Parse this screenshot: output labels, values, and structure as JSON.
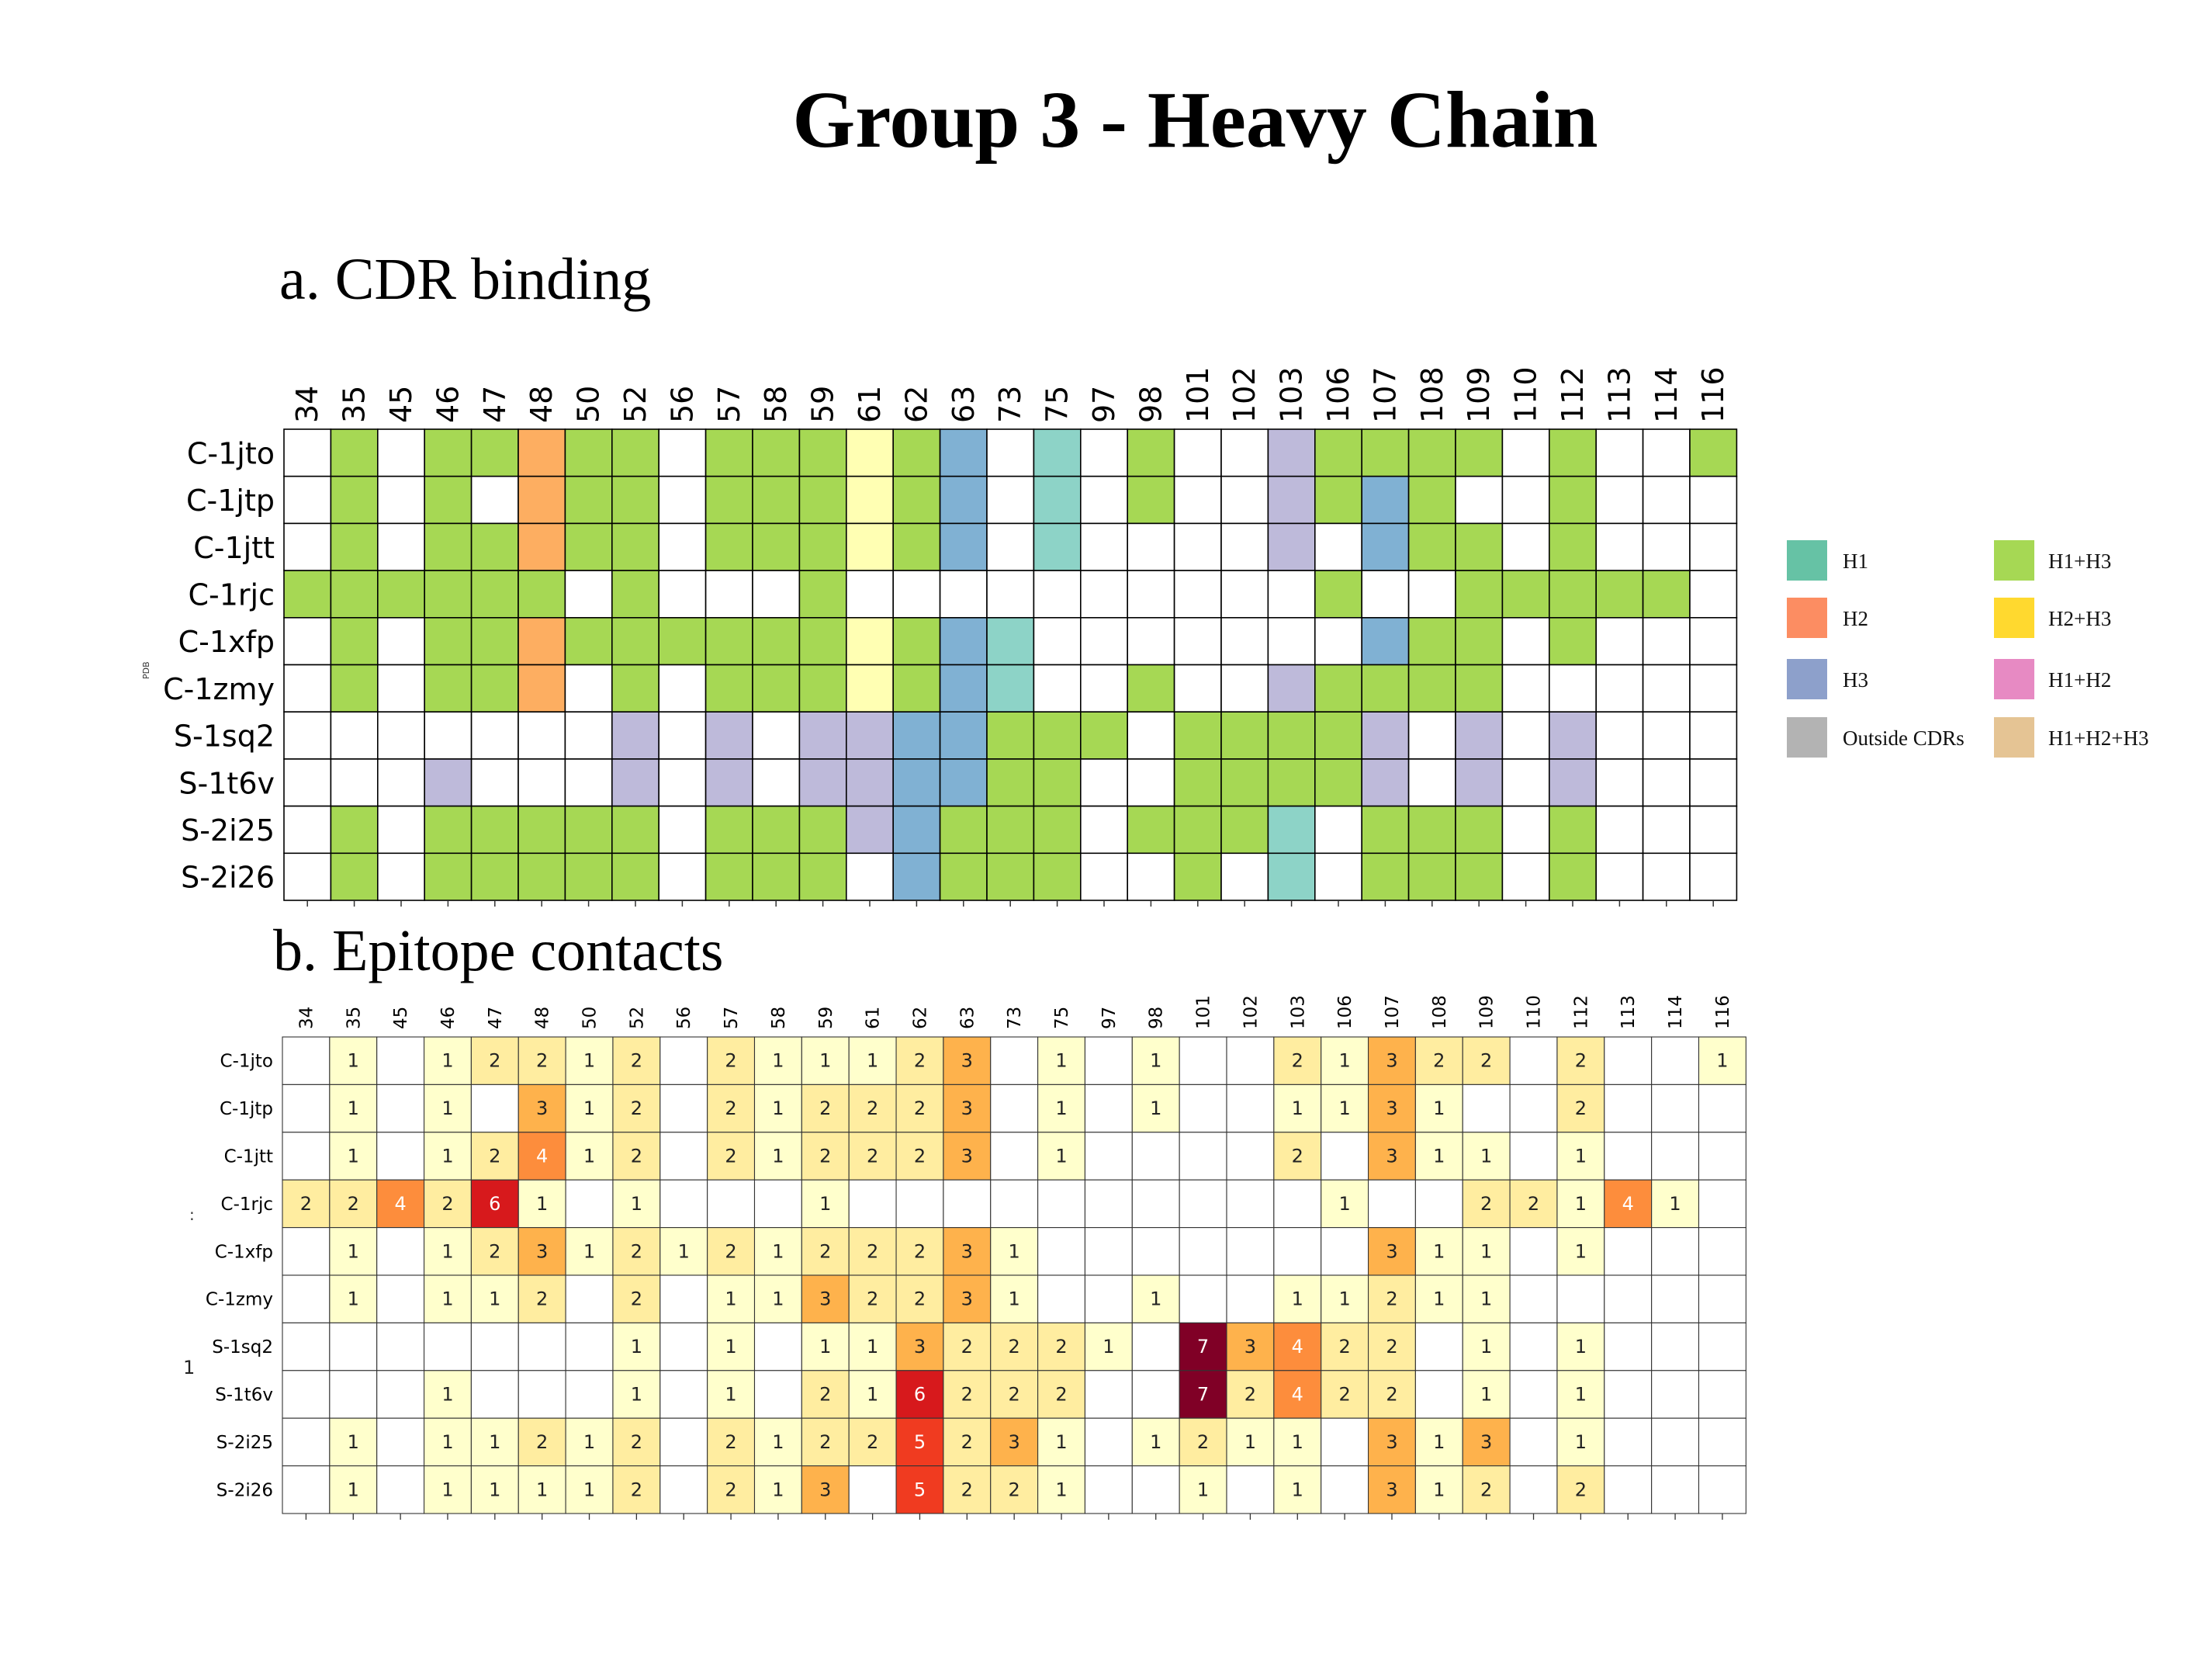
{
  "title": "Group 3 - Heavy Chain",
  "panels": {
    "a_title": "a. CDR binding",
    "b_title": "b. Epitope contacts"
  },
  "side_labels": {
    "a_ylabel": "PDB",
    "b_mark_1": ":",
    "b_mark_2": "1"
  },
  "legend": [
    {
      "key": "H1",
      "label": "H1",
      "color": "#66c2a5"
    },
    {
      "key": "H2",
      "label": "H2",
      "color": "#fc8d62"
    },
    {
      "key": "H3",
      "label": "H3",
      "color": "#8da0cb"
    },
    {
      "key": "O",
      "label": "Outside CDRs",
      "color": "#b3b3b3"
    },
    {
      "key": "H13",
      "label": "H1+H3",
      "color": "#a6d854"
    },
    {
      "key": "H23",
      "label": "H2+H3",
      "color": "#ffd92f"
    },
    {
      "key": "H12",
      "label": "H1+H2",
      "color": "#e78ac3"
    },
    {
      "key": "H123",
      "label": "H1+H2+H3",
      "color": "#e5c494"
    }
  ],
  "chart_data": [
    {
      "type": "heatmap",
      "panel": "a",
      "columns": [
        "34",
        "35",
        "45",
        "46",
        "47",
        "48",
        "50",
        "52",
        "56",
        "57",
        "58",
        "59",
        "61",
        "62",
        "63",
        "73",
        "75",
        "97",
        "98",
        "101",
        "102",
        "103",
        "106",
        "107",
        "108",
        "109",
        "110",
        "112",
        "113",
        "114",
        "116"
      ],
      "rows": [
        "C-1jto",
        "C-1jtp",
        "C-1jtt",
        "C-1rjc",
        "C-1xfp",
        "C-1zmy",
        "S-1sq2",
        "S-1t6v",
        "S-2i25",
        "S-2i26"
      ],
      "cell_colors": {
        "G": "#a6d854",
        "O": "#fdae61",
        "Y": "#ffffb3",
        "B": "#80b1d3",
        "T": "#8dd3c7",
        "L": "#bebada",
        "W": "#ffffff"
      },
      "cells": [
        "WGWGGOGGWGGGYGBWTWGWWLGGGGWGWWG",
        "WGWGWOGGWGGGYGBWTWGWWLGBGWWGWWW",
        "WGWGGOGGWGGGYGBWTWWWWLWBGGWGWWW",
        "GGGGGGWGWWWGWWWWWWWWWWGWWGGGGGW",
        "WGWGGOGGGGGGYGBTWWWWWWWBGGWGWWW",
        "WGWGGOWGWGGGYGBTWWGWWLGGGGWWWWW",
        "WWWWWWWLWLWLLBBGGGWGGGGLWLWLWWW",
        "WWWLWWWLWLWLLBBGGWWGGGGLWLWLWWW",
        "WGWGGGGGWGGGLBGGGWGGGTWGGGWGWWW",
        "WGWGGGGGWGGGWBGGGWWGWTWGGGWGWWW"
      ]
    },
    {
      "type": "heatmap",
      "panel": "b",
      "columns": [
        "34",
        "35",
        "45",
        "46",
        "47",
        "48",
        "50",
        "52",
        "56",
        "57",
        "58",
        "59",
        "61",
        "62",
        "63",
        "73",
        "75",
        "97",
        "98",
        "101",
        "102",
        "103",
        "106",
        "107",
        "108",
        "109",
        "110",
        "112",
        "113",
        "114",
        "116"
      ],
      "rows": [
        "C-1jto",
        "C-1jtp",
        "C-1jtt",
        "C-1rjc",
        "C-1xfp",
        "C-1zmy",
        "S-1sq2",
        "S-1t6v",
        "S-2i25",
        "S-2i26"
      ],
      "color_scale": {
        "1": "#ffffcc",
        "2": "#ffeda0",
        "3": "#feb24c",
        "4": "#fd8d3c",
        "5": "#f03b20",
        "6": "#d7191c",
        "7": "#800026"
      },
      "values": [
        [
          0,
          1,
          0,
          1,
          2,
          2,
          1,
          2,
          0,
          2,
          1,
          1,
          1,
          2,
          3,
          0,
          1,
          0,
          1,
          0,
          0,
          2,
          1,
          3,
          2,
          2,
          0,
          2,
          0,
          0,
          1
        ],
        [
          0,
          1,
          0,
          1,
          0,
          3,
          1,
          2,
          0,
          2,
          1,
          2,
          2,
          2,
          3,
          0,
          1,
          0,
          1,
          0,
          0,
          1,
          1,
          3,
          1,
          0,
          0,
          2,
          0,
          0,
          0
        ],
        [
          0,
          1,
          0,
          1,
          2,
          4,
          1,
          2,
          0,
          2,
          1,
          2,
          2,
          2,
          3,
          0,
          1,
          0,
          0,
          0,
          0,
          2,
          0,
          3,
          1,
          1,
          0,
          1,
          0,
          0,
          0
        ],
        [
          2,
          2,
          4,
          2,
          6,
          1,
          0,
          1,
          0,
          0,
          0,
          1,
          0,
          0,
          0,
          0,
          0,
          0,
          0,
          0,
          0,
          0,
          1,
          0,
          0,
          2,
          2,
          1,
          4,
          1,
          0
        ],
        [
          0,
          1,
          0,
          1,
          2,
          3,
          1,
          2,
          1,
          2,
          1,
          2,
          2,
          2,
          3,
          1,
          0,
          0,
          0,
          0,
          0,
          0,
          0,
          3,
          1,
          1,
          0,
          1,
          0,
          0,
          0
        ],
        [
          0,
          1,
          0,
          1,
          1,
          2,
          0,
          2,
          0,
          1,
          1,
          3,
          2,
          2,
          3,
          1,
          0,
          0,
          1,
          0,
          0,
          1,
          1,
          2,
          1,
          1,
          0,
          0,
          0,
          0,
          0
        ],
        [
          0,
          0,
          0,
          0,
          0,
          0,
          0,
          1,
          0,
          1,
          0,
          1,
          1,
          3,
          2,
          2,
          2,
          1,
          0,
          7,
          3,
          4,
          2,
          2,
          0,
          1,
          0,
          1,
          0,
          0,
          0
        ],
        [
          0,
          0,
          0,
          1,
          0,
          0,
          0,
          1,
          0,
          1,
          0,
          2,
          1,
          6,
          2,
          2,
          2,
          0,
          0,
          7,
          2,
          4,
          2,
          2,
          0,
          1,
          0,
          1,
          0,
          0,
          0
        ],
        [
          0,
          1,
          0,
          1,
          1,
          2,
          1,
          2,
          0,
          2,
          1,
          2,
          2,
          5,
          2,
          3,
          1,
          0,
          1,
          2,
          1,
          1,
          0,
          3,
          1,
          3,
          0,
          1,
          0,
          0,
          0
        ],
        [
          0,
          1,
          0,
          1,
          1,
          1,
          1,
          2,
          0,
          2,
          1,
          3,
          0,
          5,
          2,
          2,
          1,
          0,
          0,
          1,
          0,
          1,
          0,
          3,
          1,
          2,
          0,
          2,
          0,
          0,
          0
        ]
      ]
    }
  ]
}
